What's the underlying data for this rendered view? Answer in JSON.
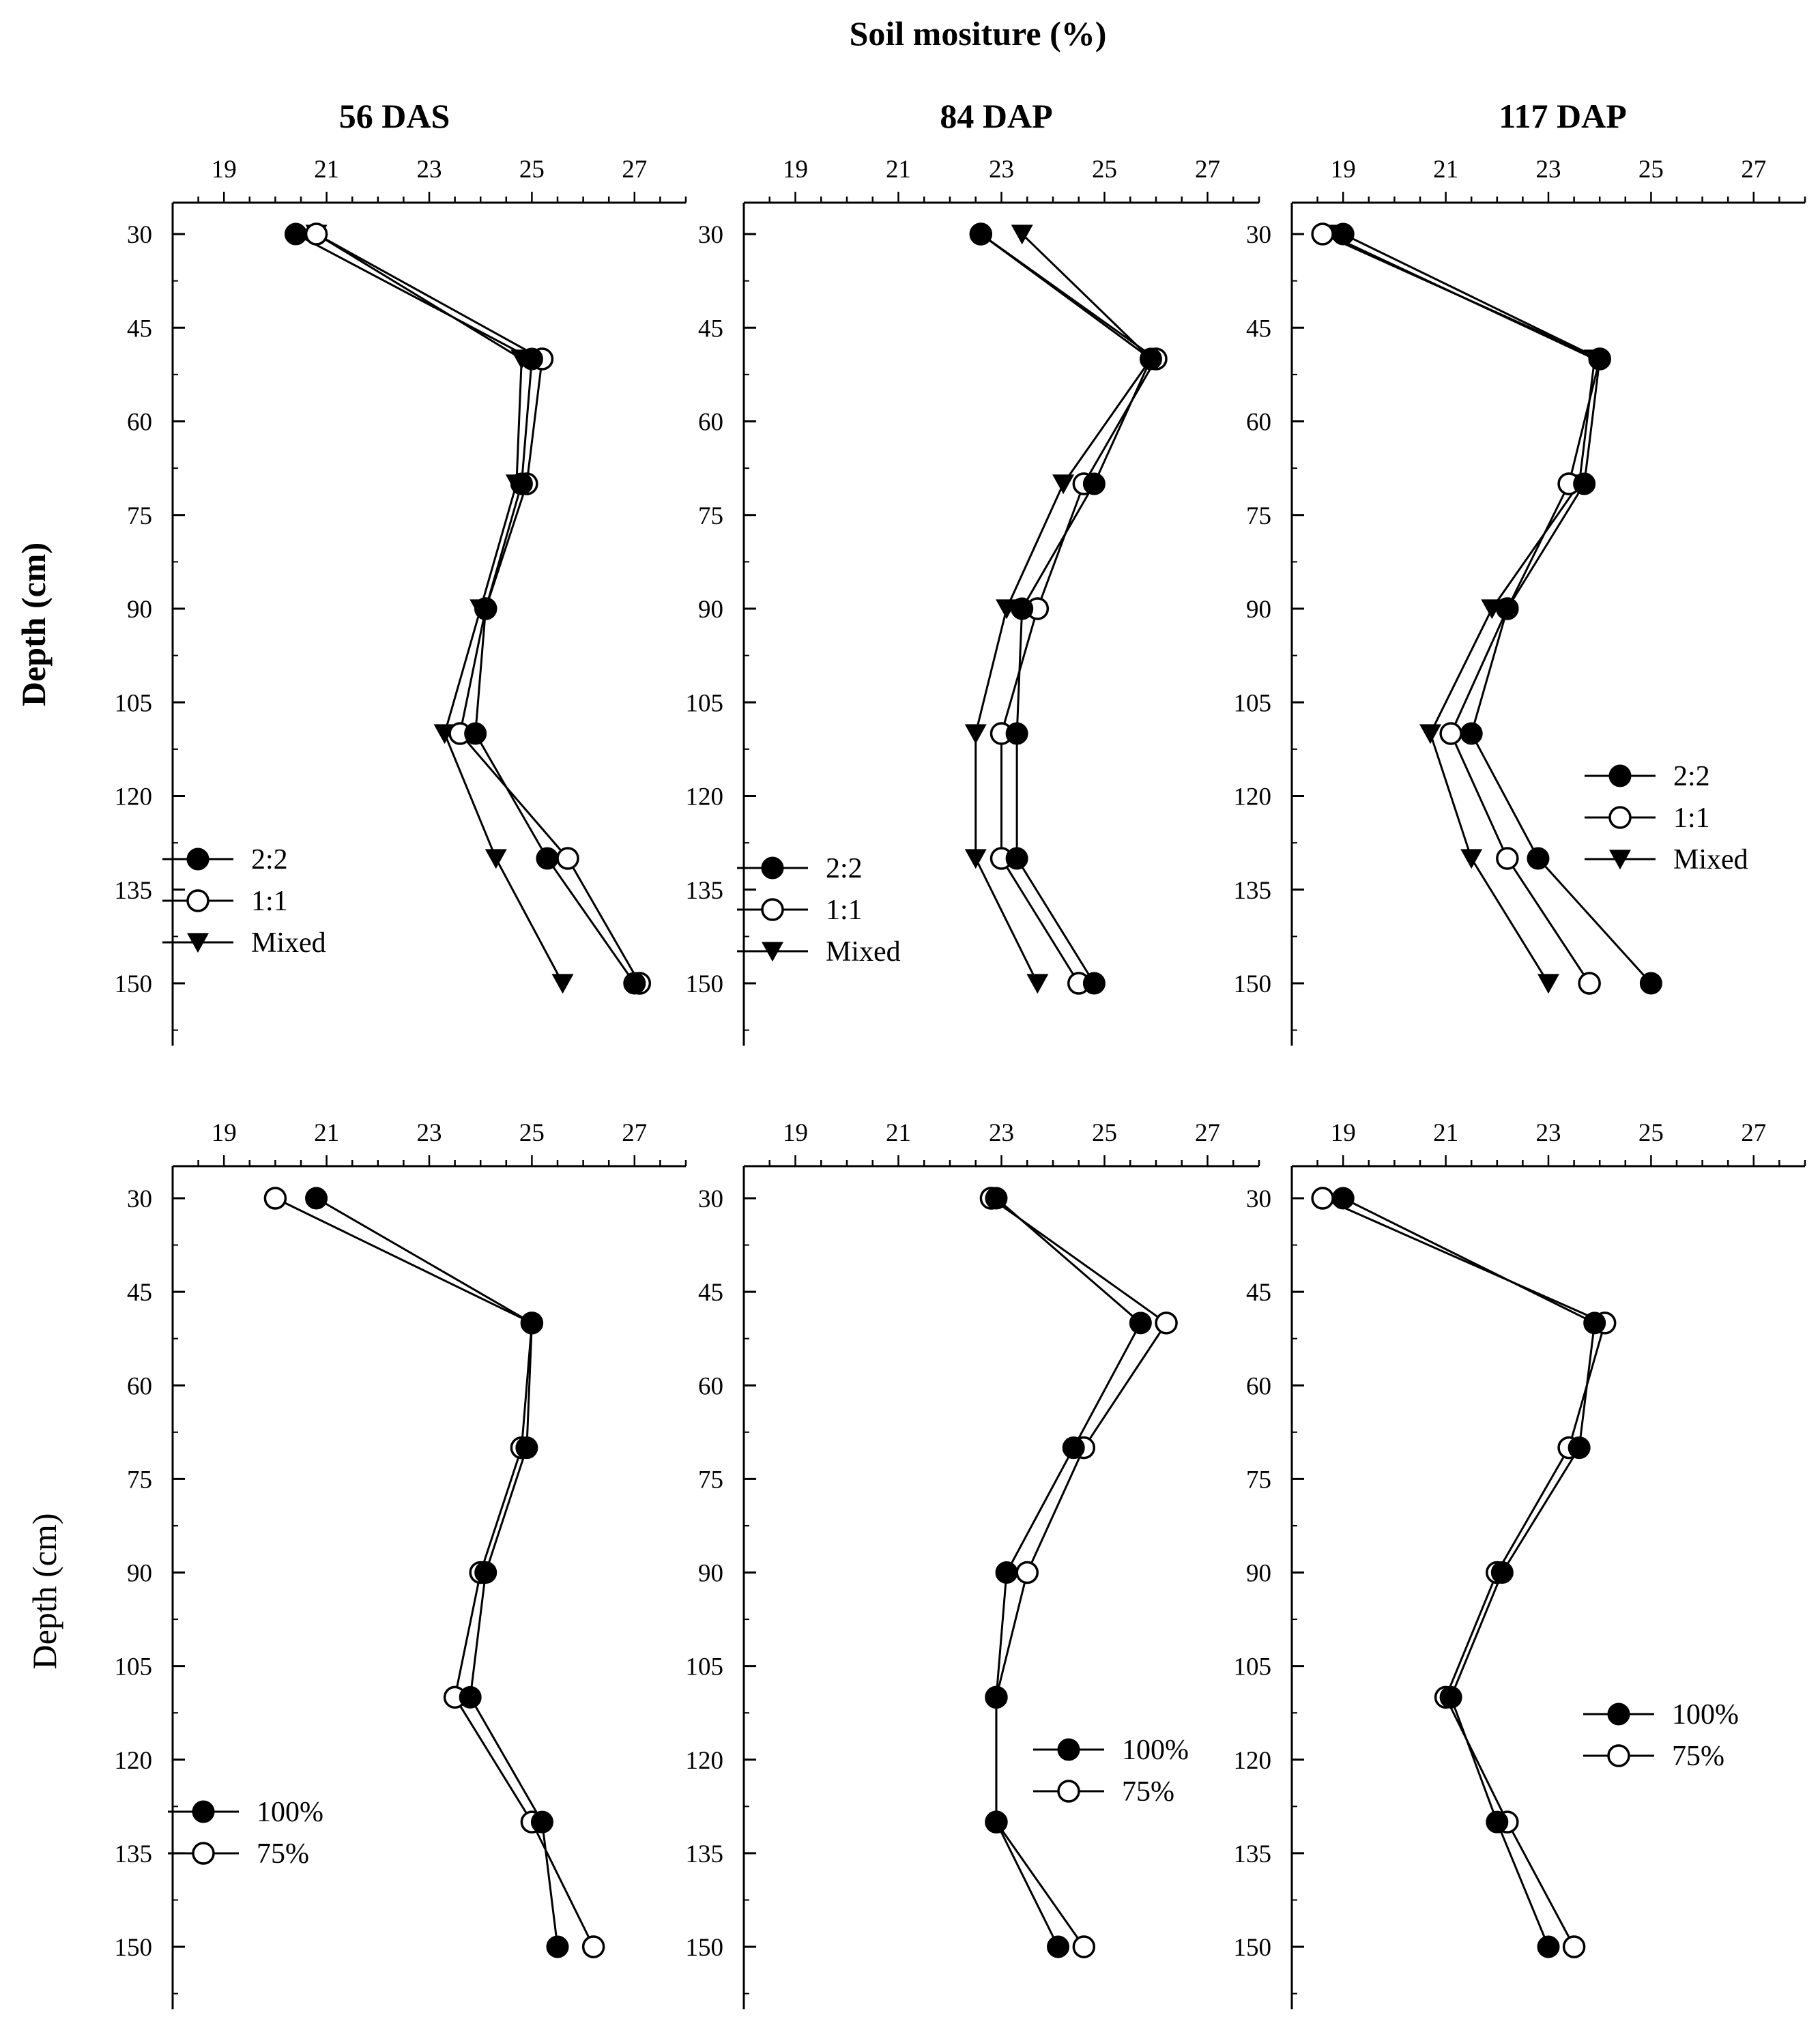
{
  "figure_title": "Soil mositure (%)",
  "chart_data": [
    {
      "type": "line",
      "title": "56 DAS",
      "xlabel": "Soil mositure (%)",
      "ylabel": "Depth (cm)",
      "xlim": [
        18,
        28
      ],
      "ylim": [
        25,
        160
      ],
      "xticks": [
        19,
        21,
        23,
        25,
        27
      ],
      "yticks": [
        30,
        45,
        60,
        75,
        90,
        105,
        120,
        135,
        150
      ],
      "series": [
        {
          "name": "2:2",
          "marker": "filled-circle",
          "x": [
            20.4,
            25.0,
            24.8,
            24.1,
            23.9,
            25.3,
            27.0
          ],
          "y": [
            30,
            50,
            70,
            90,
            110,
            130,
            150
          ]
        },
        {
          "name": "1:1",
          "marker": "open-circle",
          "x": [
            20.8,
            25.2,
            24.9,
            24.1,
            23.6,
            25.7,
            27.1
          ],
          "y": [
            30,
            50,
            70,
            90,
            110,
            130,
            150
          ]
        },
        {
          "name": "Mixed",
          "marker": "filled-triangle-down",
          "x": [
            20.8,
            24.8,
            24.7,
            24.0,
            23.3,
            24.3,
            25.6
          ],
          "y": [
            30,
            50,
            70,
            90,
            110,
            130,
            150
          ]
        }
      ]
    },
    {
      "type": "line",
      "title": "84 DAP",
      "xlabel": "Soil mositure (%)",
      "ylabel": "Depth (cm)",
      "xlim": [
        18,
        28
      ],
      "ylim": [
        25,
        160
      ],
      "xticks": [
        19,
        21,
        23,
        25,
        27
      ],
      "yticks": [
        30,
        45,
        60,
        75,
        90,
        105,
        120,
        135,
        150
      ],
      "series": [
        {
          "name": "2:2",
          "marker": "filled-circle",
          "x": [
            22.6,
            25.9,
            24.8,
            23.4,
            23.3,
            23.3,
            24.8
          ],
          "y": [
            30,
            50,
            70,
            90,
            110,
            130,
            150
          ]
        },
        {
          "name": "1:1",
          "marker": "open-circle",
          "x": [
            22.6,
            26.0,
            24.6,
            23.7,
            23.0,
            23.0,
            24.5
          ],
          "y": [
            30,
            50,
            70,
            90,
            110,
            130,
            150
          ]
        },
        {
          "name": "Mixed",
          "marker": "filled-triangle-down",
          "x": [
            23.4,
            25.9,
            24.2,
            23.1,
            22.5,
            22.5,
            23.7
          ],
          "y": [
            30,
            50,
            70,
            90,
            110,
            130,
            150
          ]
        }
      ]
    },
    {
      "type": "line",
      "title": "117 DAP",
      "xlabel": "Soil mositure (%)",
      "ylabel": "Depth (cm)",
      "xlim": [
        18,
        28
      ],
      "ylim": [
        25,
        160
      ],
      "xticks": [
        19,
        21,
        23,
        25,
        27
      ],
      "yticks": [
        30,
        45,
        60,
        75,
        90,
        105,
        120,
        135,
        150
      ],
      "series": [
        {
          "name": "2:2",
          "marker": "filled-circle",
          "x": [
            19.0,
            24.0,
            23.7,
            22.2,
            21.5,
            22.8,
            25.0
          ],
          "y": [
            30,
            50,
            70,
            90,
            110,
            130,
            150
          ]
        },
        {
          "name": "1:1",
          "marker": "open-circle",
          "x": [
            18.6,
            24.0,
            23.4,
            22.2,
            21.1,
            22.2,
            23.8
          ],
          "y": [
            30,
            50,
            70,
            90,
            110,
            130,
            150
          ]
        },
        {
          "name": "Mixed",
          "marker": "filled-triangle-down",
          "x": [
            18.7,
            23.9,
            23.6,
            21.9,
            20.7,
            21.5,
            23.0
          ],
          "y": [
            30,
            50,
            70,
            90,
            110,
            130,
            150
          ]
        }
      ]
    },
    {
      "type": "line",
      "title": "",
      "xlabel": "Soil mositure (%)",
      "ylabel": "Depth (cm)",
      "xlim": [
        18,
        28
      ],
      "ylim": [
        25,
        160
      ],
      "xticks": [
        19,
        21,
        23,
        25,
        27
      ],
      "yticks": [
        30,
        45,
        60,
        75,
        90,
        105,
        120,
        135,
        150
      ],
      "series": [
        {
          "name": "100%",
          "marker": "filled-circle",
          "x": [
            20.8,
            25.0,
            24.9,
            24.1,
            23.8,
            25.2,
            25.5
          ],
          "y": [
            30,
            50,
            70,
            90,
            110,
            130,
            150
          ]
        },
        {
          "name": "75%",
          "marker": "open-circle",
          "x": [
            20.0,
            25.0,
            24.8,
            24.0,
            23.5,
            25.0,
            26.2
          ],
          "y": [
            30,
            50,
            70,
            90,
            110,
            130,
            150
          ]
        }
      ]
    },
    {
      "type": "line",
      "title": "",
      "xlabel": "Soil mositure (%)",
      "ylabel": "Depth (cm)",
      "xlim": [
        18,
        28
      ],
      "ylim": [
        25,
        160
      ],
      "xticks": [
        19,
        21,
        23,
        25,
        27
      ],
      "yticks": [
        30,
        45,
        60,
        75,
        90,
        105,
        120,
        135,
        150
      ],
      "series": [
        {
          "name": "100%",
          "marker": "filled-circle",
          "x": [
            22.9,
            25.7,
            24.4,
            23.1,
            22.9,
            22.9,
            24.1
          ],
          "y": [
            30,
            50,
            70,
            90,
            110,
            130,
            150
          ]
        },
        {
          "name": "75%",
          "marker": "open-circle",
          "x": [
            22.8,
            26.2,
            24.6,
            23.5,
            22.9,
            22.9,
            24.6
          ],
          "y": [
            30,
            50,
            70,
            90,
            110,
            130,
            150
          ]
        }
      ]
    },
    {
      "type": "line",
      "title": "",
      "xlabel": "Soil mositure (%)",
      "ylabel": "Depth (cm)",
      "xlim": [
        18,
        28
      ],
      "ylim": [
        25,
        160
      ],
      "xticks": [
        19,
        21,
        23,
        25,
        27
      ],
      "yticks": [
        30,
        45,
        60,
        75,
        90,
        105,
        120,
        135,
        150
      ],
      "series": [
        {
          "name": "100%",
          "marker": "filled-circle",
          "x": [
            19.0,
            23.9,
            23.6,
            22.1,
            21.1,
            22.0,
            23.0
          ],
          "y": [
            30,
            50,
            70,
            90,
            110,
            130,
            150
          ]
        },
        {
          "name": "75%",
          "marker": "open-circle",
          "x": [
            18.6,
            24.1,
            23.4,
            22.0,
            21.0,
            22.2,
            23.5
          ],
          "y": [
            30,
            50,
            70,
            90,
            110,
            130,
            150
          ]
        }
      ]
    }
  ]
}
